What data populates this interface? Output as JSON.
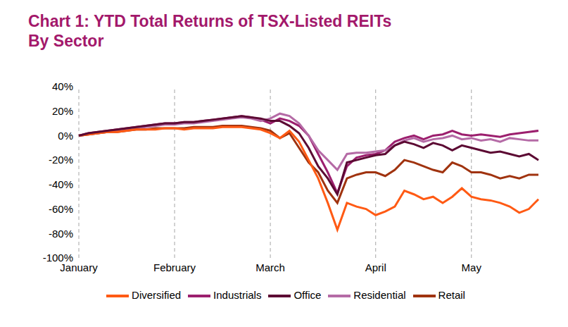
{
  "chart_data": {
    "type": "line",
    "title": "Chart 1: YTD Total Returns of TSX-Listed REITs",
    "subtitle": "By Sector",
    "categories": [
      "January",
      null,
      null,
      null,
      null,
      null,
      null,
      null,
      null,
      null,
      "February",
      null,
      null,
      null,
      null,
      null,
      null,
      null,
      null,
      null,
      "March",
      null,
      null,
      null,
      null,
      null,
      null,
      null,
      null,
      null,
      null,
      "April",
      null,
      null,
      null,
      null,
      null,
      null,
      null,
      null,
      null,
      "May",
      null,
      null,
      null,
      null,
      null,
      null,
      null
    ],
    "series": [
      {
        "name": "Industrials",
        "color": "#9C1F6E",
        "values": [
          0,
          2,
          3,
          4,
          5,
          6,
          7,
          8,
          9,
          10,
          10,
          11,
          11,
          12,
          13,
          14,
          15,
          16,
          15,
          13,
          10,
          14,
          12,
          8,
          0,
          -15,
          -30,
          -47,
          -25,
          -18,
          -16,
          -15,
          -12,
          -5,
          -2,
          0,
          -3,
          0,
          1,
          4,
          1,
          0,
          1,
          0,
          -1,
          1,
          2,
          3,
          4
        ]
      },
      {
        "name": "Residential",
        "color": "#B56BA6",
        "values": [
          0,
          1,
          2,
          3,
          4,
          5,
          6,
          7,
          8,
          9,
          9,
          10,
          10,
          11,
          12,
          13,
          14,
          15,
          14,
          12,
          14,
          18,
          16,
          10,
          0,
          -12,
          -20,
          -28,
          -15,
          -14,
          -14,
          -13,
          -12,
          -8,
          -4,
          -2,
          -5,
          -3,
          -2,
          0,
          -3,
          -2,
          -4,
          -3,
          -5,
          -2,
          -3,
          -4,
          -4
        ]
      },
      {
        "name": "Retail",
        "color": "#A0330F",
        "values": [
          0,
          1,
          2,
          3,
          3,
          4,
          5,
          5,
          6,
          6,
          6,
          6,
          7,
          7,
          7,
          8,
          8,
          8,
          7,
          6,
          4,
          -2,
          2,
          -10,
          -22,
          -30,
          -45,
          -55,
          -35,
          -32,
          -30,
          -30,
          -33,
          -28,
          -20,
          -22,
          -25,
          -28,
          -30,
          -22,
          -25,
          -30,
          -30,
          -32,
          -35,
          -33,
          -35,
          -32,
          -32
        ]
      },
      {
        "name": "Diversified",
        "color": "#FF5A14",
        "values": [
          0,
          1,
          2,
          3,
          3,
          4,
          5,
          5,
          5,
          6,
          6,
          5,
          6,
          6,
          6,
          7,
          7,
          7,
          6,
          5,
          2,
          -2,
          4,
          -5,
          -20,
          -35,
          -55,
          -77,
          -55,
          -58,
          -60,
          -65,
          -62,
          -58,
          -45,
          -48,
          -52,
          -50,
          -55,
          -50,
          -43,
          -50,
          -52,
          -53,
          -55,
          -58,
          -63,
          -60,
          -52
        ]
      },
      {
        "name": "Office",
        "color": "#5C0A33",
        "values": [
          0,
          2,
          3,
          4,
          5,
          6,
          7,
          8,
          9,
          10,
          10,
          11,
          11,
          12,
          13,
          14,
          15,
          16,
          15,
          14,
          12,
          12,
          8,
          2,
          -10,
          -25,
          -35,
          -48,
          -22,
          -20,
          -18,
          -16,
          -15,
          -8,
          -5,
          -7,
          -10,
          -6,
          -8,
          -12,
          -8,
          -10,
          -12,
          -14,
          -13,
          -15,
          -17,
          -15,
          -20
        ]
      }
    ],
    "ylim": [
      -100,
      40
    ],
    "yticks": [
      {
        "value": -100,
        "label": "-100%"
      },
      {
        "value": -80,
        "label": "-80%"
      },
      {
        "value": -60,
        "label": "-60%"
      },
      {
        "value": -40,
        "label": "-40%"
      },
      {
        "value": -20,
        "label": "-20%"
      },
      {
        "value": 0,
        "label": "0%"
      },
      {
        "value": 20,
        "label": "20%"
      },
      {
        "value": 40,
        "label": "40%"
      }
    ],
    "grid": true,
    "legend": "bottom"
  }
}
